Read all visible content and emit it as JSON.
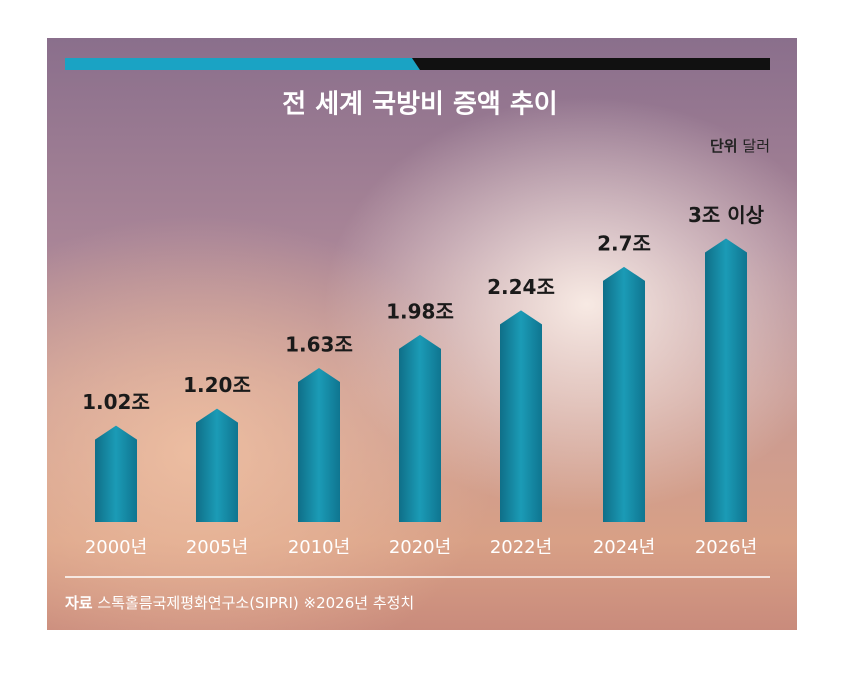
{
  "chart_data": {
    "type": "bar",
    "title": "전 세계 국방비 증액 추이",
    "unit_title": "단위",
    "unit": "달러",
    "categories": [
      "2000년",
      "2005년",
      "2010년",
      "2020년",
      "2022년",
      "2024년",
      "2026년"
    ],
    "values": [
      1.02,
      1.2,
      1.63,
      1.98,
      2.24,
      2.7,
      3
    ],
    "value_labels": [
      "1.02조",
      "1.20조",
      "1.63조",
      "1.98조",
      "2.24조",
      "2.7조",
      "3조 이상"
    ],
    "color": "#1b8fa9",
    "source_title": "자료",
    "source": "스톡홀름국제평화연구소(SIPRI)",
    "note": "※2026년 추정치"
  }
}
